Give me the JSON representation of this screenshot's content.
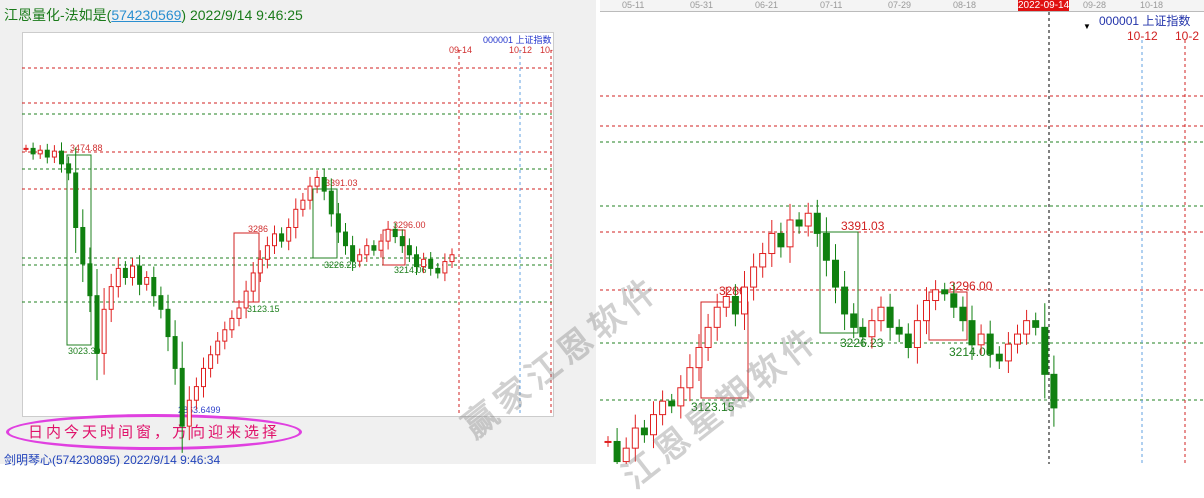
{
  "left": {
    "title_prefix": "江恩量化-法如是(",
    "title_link": "574230569",
    "title_suffix": ") 2022/9/14 9:46:25",
    "index_label": "000001 上证指数",
    "dates": [
      "09-14",
      "10-12",
      "10-"
    ],
    "price_labels": {
      "high": "3474.88",
      "low1": "3023.30",
      "low2": "2863.6499",
      "r1": "3391.03",
      "r2": "3286",
      "r3": "3296.00",
      "s1": "3226.23",
      "s2": "3214.06",
      "s3": "3123.15"
    },
    "annotation": "日内今天时间窗，方向迎来选择",
    "footer": "剑明琴心(574230895) 2022/9/14 9:46:34",
    "closes": [
      3474,
      3462,
      3470,
      3455,
      3468,
      3440,
      3420,
      3300,
      3220,
      3150,
      3023,
      3120,
      3170,
      3210,
      3190,
      3215,
      3175,
      3190,
      3150,
      3120,
      3060,
      2990,
      2863,
      2920,
      2950,
      2990,
      3020,
      3050,
      3075,
      3100,
      3123,
      3160,
      3200,
      3230,
      3260,
      3286,
      3270,
      3300,
      3340,
      3360,
      3391,
      3410,
      3380,
      3330,
      3290,
      3260,
      3226,
      3240,
      3260,
      3250,
      3270,
      3296,
      3280,
      3260,
      3240,
      3214,
      3230,
      3210,
      3200,
      3225,
      3240
    ]
  },
  "right": {
    "axis_dates": [
      "05-11",
      "05-31",
      "06-21",
      "07-11",
      "07-29",
      "08-18",
      "2022-09-14",
      "09-28",
      "10-18"
    ],
    "index_label": "000001 上证指数",
    "dates": [
      "10-12",
      "10-2"
    ],
    "price_labels": {
      "r1": "3391.03",
      "r2": "3286",
      "r3": "3296.00",
      "s1": "3226.23",
      "s2": "3214.06",
      "s3": "3123.15"
    },
    "closes": [
      3070,
      3040,
      3060,
      3090,
      3080,
      3110,
      3130,
      3123,
      3150,
      3180,
      3210,
      3240,
      3270,
      3286,
      3260,
      3300,
      3330,
      3350,
      3380,
      3360,
      3400,
      3391,
      3410,
      3380,
      3340,
      3300,
      3260,
      3240,
      3226,
      3250,
      3270,
      3240,
      3230,
      3210,
      3250,
      3280,
      3296,
      3290,
      3270,
      3250,
      3214,
      3230,
      3200,
      3190,
      3215,
      3230,
      3250,
      3240,
      3170,
      3120
    ]
  },
  "watermarks": [
    "赢家江恩软件",
    "江恩星期软件"
  ],
  "colors": {
    "up": "#e02020",
    "down": "#108010",
    "resistance": "#d02020",
    "support": "#208020"
  }
}
